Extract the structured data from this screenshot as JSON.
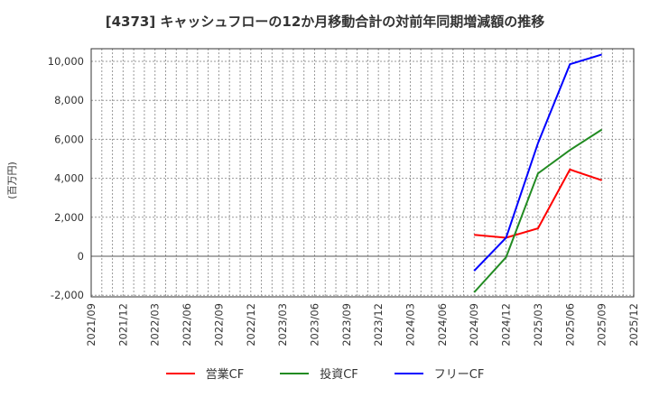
{
  "title": "[4373]  キャッシュフローの12か月移動合計の対前年同期増減額の推移",
  "chart_data": {
    "type": "line",
    "title": "[4373]  キャッシュフローの12か月移動合計の対前年同期増減額の推移",
    "xlabel": "",
    "ylabel": "(百万円)",
    "ylim": [
      -2000,
      10700
    ],
    "yticks": [
      -2000,
      0,
      2000,
      4000,
      6000,
      8000,
      10000
    ],
    "ytick_labels": [
      "-2,000",
      "0",
      "2,000",
      "4,000",
      "6,000",
      "8,000",
      "10,000"
    ],
    "categories": [
      "2021/09",
      "2021/12",
      "2022/03",
      "2022/06",
      "2022/09",
      "2022/12",
      "2023/03",
      "2023/06",
      "2023/09",
      "2023/12",
      "2024/03",
      "2024/06",
      "2024/09",
      "2024/12",
      "2025/03",
      "2025/06",
      "2025/09",
      "2025/12"
    ],
    "grid": true,
    "legend_position": "bottom",
    "series": [
      {
        "name": "営業CF",
        "color": "#ff0000",
        "values": [
          null,
          null,
          null,
          null,
          null,
          null,
          null,
          null,
          null,
          null,
          null,
          null,
          1100,
          950,
          1430,
          4450,
          3900,
          null
        ]
      },
      {
        "name": "投資CF",
        "color": "#228b22",
        "values": [
          null,
          null,
          null,
          null,
          null,
          null,
          null,
          null,
          null,
          null,
          null,
          null,
          -1850,
          -50,
          4250,
          5450,
          6500,
          null
        ]
      },
      {
        "name": "フリーCF",
        "color": "#0000ff",
        "values": [
          null,
          null,
          null,
          null,
          null,
          null,
          null,
          null,
          null,
          null,
          null,
          null,
          -750,
          950,
          5800,
          9850,
          10350,
          null
        ]
      }
    ]
  },
  "legend": [
    {
      "label": "営業CF",
      "color": "#ff0000"
    },
    {
      "label": "投資CF",
      "color": "#228b22"
    },
    {
      "label": "フリーCF",
      "color": "#0000ff"
    }
  ]
}
